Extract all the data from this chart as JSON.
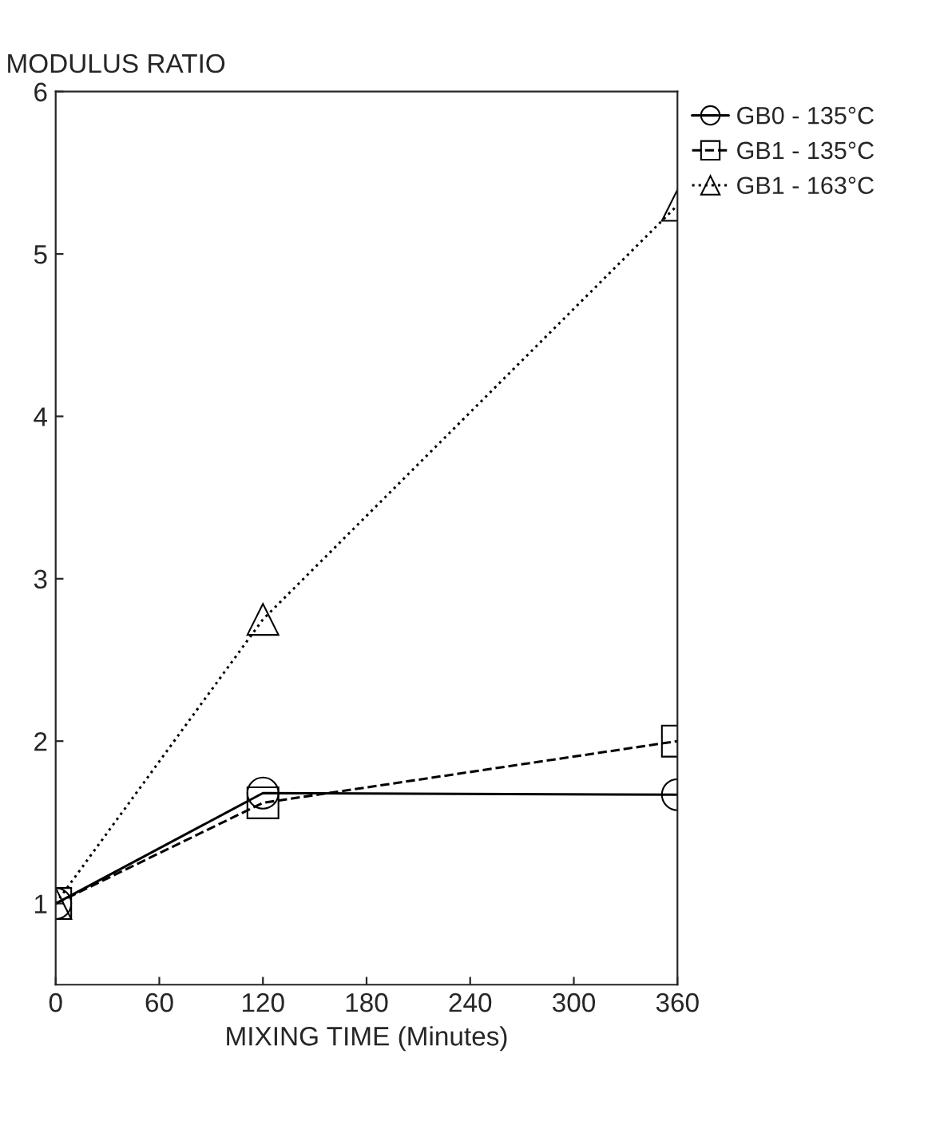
{
  "chart_data": {
    "type": "line",
    "xlabel": "MIXING TIME (Minutes)",
    "ylabel": "MODULUS RATIO",
    "x": [
      0,
      120,
      360
    ],
    "series": [
      {
        "name": "GB0 - 135°C",
        "color": "#000000",
        "marker": "circle",
        "line_style": "solid",
        "values": [
          1.0,
          1.68,
          1.67
        ]
      },
      {
        "name": "GB1 - 135°C",
        "color": "#000000",
        "marker": "square",
        "line_style": "dashed",
        "values": [
          1.0,
          1.62,
          2.0
        ]
      },
      {
        "name": "GB1 - 163°C",
        "color": "#000000",
        "marker": "triangle",
        "line_style": "dotted",
        "values": [
          1.0,
          2.75,
          5.3
        ]
      }
    ],
    "xlim": [
      0,
      360
    ],
    "xticks": [
      0,
      60,
      120,
      180,
      240,
      300,
      360
    ],
    "ylim": [
      0.5,
      6
    ],
    "yticks": [
      1,
      2,
      3,
      4,
      5,
      6
    ],
    "grid": false,
    "legend": "top right"
  }
}
